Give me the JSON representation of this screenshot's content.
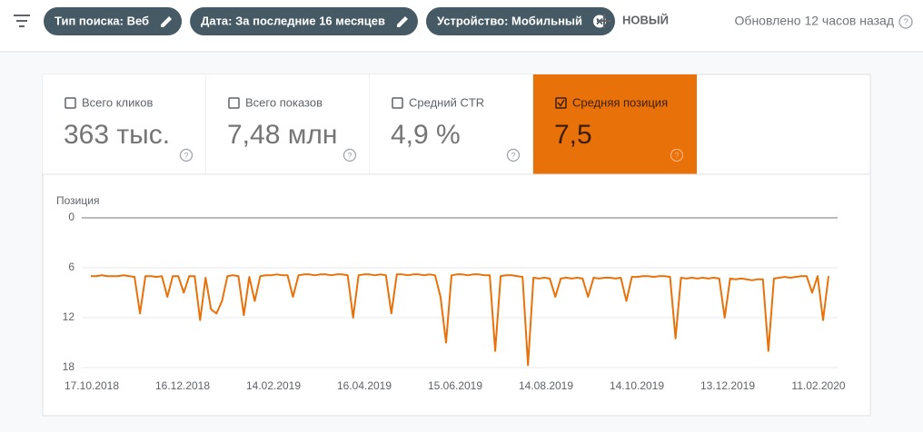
{
  "toolbar": {
    "filters": [
      "Тип поиска: Веб",
      "Дата: За последние 16 месяцев",
      "Устройство: Мобильный"
    ],
    "new_button": "НОВЫЙ",
    "updated": "Обновлено 12 часов назад"
  },
  "metrics": [
    {
      "label": "Всего кликов",
      "value": "363 тыс.",
      "selected": false
    },
    {
      "label": "Всего показов",
      "value": "7,48 млн",
      "selected": false
    },
    {
      "label": "Средний CTR",
      "value": "4,9 %",
      "selected": false
    },
    {
      "label": "Средняя позиция",
      "value": "7,5",
      "selected": true
    }
  ],
  "chart_data": {
    "type": "line",
    "y_label": "Позиция",
    "ylim": [
      0,
      18
    ],
    "y_inverted": true,
    "yticks": [
      0,
      6,
      12,
      18
    ],
    "grid": true,
    "xticks": [
      "17.10.2018",
      "16.12.2018",
      "14.02.2019",
      "16.04.2019",
      "15.06.2019",
      "14.08.2019",
      "14.10.2019",
      "13.12.2019",
      "11.02.2020"
    ],
    "series": [
      {
        "name": "Средняя позиция",
        "color": "#e8710a",
        "values": [
          7,
          7,
          6.9,
          7,
          7,
          7,
          6.9,
          7,
          7.1,
          11.5,
          7,
          7,
          7.1,
          7,
          9.5,
          7,
          7,
          9,
          7,
          7,
          12.3,
          7.2,
          11,
          11.5,
          10,
          7,
          6.9,
          7,
          11.7,
          7.1,
          10,
          7,
          6.9,
          6.9,
          6.8,
          6.9,
          6.9,
          9.5,
          6.9,
          6.8,
          6.8,
          6.9,
          6.8,
          6.8,
          6.9,
          6.8,
          6.8,
          6.9,
          12,
          6.9,
          6.8,
          6.8,
          6.9,
          6.8,
          6.9,
          11.5,
          6.8,
          6.8,
          6.9,
          6.8,
          6.8,
          6.9,
          6.8,
          6.9,
          9.5,
          15,
          6.9,
          6.8,
          6.8,
          6.9,
          6.8,
          6.8,
          6.9,
          6.9,
          16,
          7,
          6.9,
          6.9,
          7,
          7.1,
          17.7,
          7.2,
          7.3,
          7.2,
          7.3,
          9.5,
          7.3,
          7.2,
          7.3,
          7.2,
          7.3,
          9.5,
          7.2,
          7.3,
          7.2,
          7.2,
          7.3,
          7.2,
          10,
          7.1,
          7.1,
          7,
          7,
          7.1,
          7,
          7,
          7.1,
          14.5,
          7.2,
          7.3,
          7.2,
          7.3,
          7.2,
          7.3,
          7.2,
          7.3,
          12,
          7.3,
          7.4,
          7.3,
          7.4,
          7.5,
          7.4,
          7.4,
          16,
          7.3,
          7.2,
          7.1,
          7.2,
          7.1,
          7,
          7,
          9,
          7,
          12.3,
          7
        ]
      }
    ]
  }
}
